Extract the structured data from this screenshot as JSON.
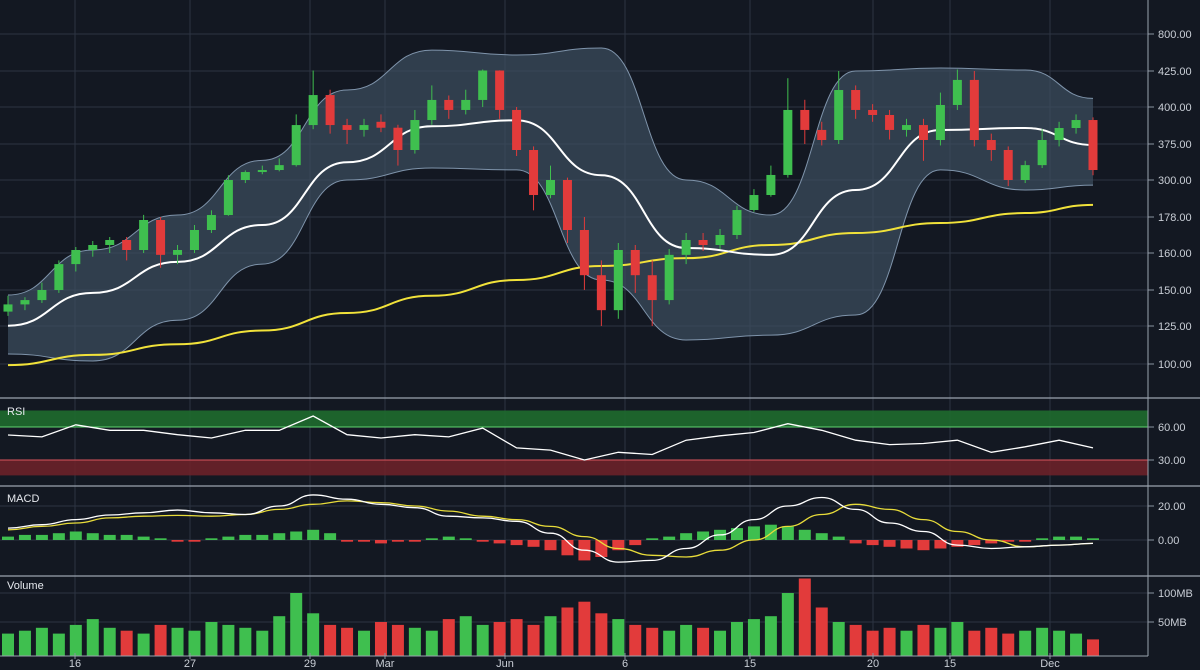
{
  "chart_data": [
    {
      "type": "candlestick",
      "pane": "price",
      "y_ticks": [
        800,
        425,
        400,
        375,
        300,
        178,
        160,
        150,
        125,
        100
      ],
      "y_tick_labels": [
        "800.00",
        "425.00",
        "400.00",
        "375.00",
        "300.00",
        "178.00",
        "160.00",
        "150.00",
        "125.00",
        "100.00"
      ],
      "x_tick_labels": [
        "16",
        "27",
        "29",
        "Mar",
        "Jun",
        "6",
        "15",
        "20",
        "15",
        "Dec"
      ],
      "grid": true,
      "colors": {
        "up": "#3fbf4f",
        "down": "#e23b3b",
        "band_fill": "#3d4e60",
        "band_edge": "#7f94ab",
        "sma": "#ffffff",
        "long_ma": "#f1e23a"
      },
      "ohlc": [
        [
          135,
          146,
          132,
          140
        ],
        [
          140,
          145,
          136,
          143
        ],
        [
          143,
          152,
          141,
          150
        ],
        [
          150,
          158,
          148,
          157
        ],
        [
          157,
          163,
          155,
          161.5
        ],
        [
          161.5,
          166,
          159,
          164
        ],
        [
          164,
          168,
          160,
          166.5
        ],
        [
          166.5,
          168,
          158,
          161.5
        ],
        [
          161.5,
          185,
          160,
          176.5
        ],
        [
          176.5,
          178,
          156,
          159.5
        ],
        [
          159.5,
          164,
          157,
          161.5
        ],
        [
          161.5,
          174,
          160,
          171.5
        ],
        [
          171.5,
          200,
          170,
          184.5
        ],
        [
          184.5,
          310,
          182,
          300
        ],
        [
          300,
          320,
          290,
          316.6
        ],
        [
          316.6,
          330,
          312,
          320.8
        ],
        [
          320.8,
          345,
          318,
          331
        ],
        [
          331,
          395,
          328,
          387.8
        ],
        [
          387.8,
          430,
          385,
          408.3
        ],
        [
          408.3,
          412,
          382,
          387.8
        ],
        [
          387.8,
          392,
          375,
          384.5
        ],
        [
          384.5,
          392,
          380,
          387.8
        ],
        [
          390,
          395,
          383,
          386
        ],
        [
          386,
          388,
          330,
          362.5
        ],
        [
          362.5,
          398,
          355,
          391.2
        ],
        [
          391.2,
          415,
          388,
          404.9
        ],
        [
          404.9,
          408,
          392,
          398
        ],
        [
          398,
          412,
          395,
          404.9
        ],
        [
          404.9,
          440,
          400,
          430
        ],
        [
          430,
          432,
          392,
          398
        ],
        [
          398,
          400,
          350,
          362.5
        ],
        [
          362.5,
          370,
          200,
          250.5
        ],
        [
          250.5,
          330,
          240,
          300
        ],
        [
          300,
          305,
          165,
          171.5
        ],
        [
          171.5,
          178,
          150,
          154
        ],
        [
          154,
          158,
          125,
          136
        ],
        [
          136,
          165,
          130,
          161.5
        ],
        [
          161.5,
          164,
          148,
          154
        ],
        [
          154,
          158,
          125,
          143
        ],
        [
          143,
          162,
          140,
          159.5
        ],
        [
          159.5,
          170,
          157,
          166.5
        ],
        [
          166.5,
          170,
          161,
          164
        ],
        [
          164,
          172,
          162,
          169
        ],
        [
          169,
          215,
          167,
          201
        ],
        [
          201,
          270,
          195,
          250.5
        ],
        [
          250.5,
          330,
          245,
          310.5
        ],
        [
          310.5,
          420,
          305,
          398
        ],
        [
          398,
          405,
          375,
          384.5
        ],
        [
          384.5,
          390,
          372,
          377.7
        ],
        [
          377.7,
          425,
          375,
          411.8
        ],
        [
          411.8,
          415,
          392,
          398
        ],
        [
          398,
          402,
          390,
          394.6
        ],
        [
          394.6,
          398,
          378,
          384.5
        ],
        [
          384.5,
          392,
          380,
          387.8
        ],
        [
          387.8,
          392,
          340,
          377.7
        ],
        [
          377.7,
          410,
          372,
          401.4
        ],
        [
          401.4,
          440,
          398,
          418.8
        ],
        [
          418.8,
          425,
          370,
          377.7
        ],
        [
          377.7,
          382,
          340,
          362.5
        ],
        [
          362.5,
          370,
          280,
          300
        ],
        [
          300,
          340,
          290,
          331
        ],
        [
          331,
          385,
          325,
          377.7
        ],
        [
          377.7,
          390,
          370,
          385.8
        ],
        [
          385.8,
          395,
          382,
          391.2
        ],
        [
          391.2,
          393,
          310,
          320.8
        ]
      ],
      "overlay_index": [
        0,
        5,
        10,
        15,
        20,
        25,
        30,
        35,
        40,
        45,
        50,
        55,
        60,
        64
      ],
      "sma": [
        125.2,
        148,
        157.6,
        174,
        337,
        387,
        391,
        310,
        162.5,
        159.5,
        267,
        384.5,
        385.8,
        373
      ],
      "upper_band": [
        146.5,
        161.5,
        184.5,
        341,
        411.8,
        637,
        587,
        658,
        300,
        184.5,
        425,
        455,
        435,
        406
      ],
      "lower_band": [
        106.6,
        102,
        129,
        157,
        300,
        325,
        321,
        152.7,
        115.8,
        119,
        132.6,
        321,
        267,
        283
      ],
      "long_ma": [
        99.3,
        106,
        113,
        122,
        134,
        146,
        152.7,
        156.5,
        158.6,
        164,
        170,
        175,
        191,
        218
      ]
    },
    {
      "type": "line",
      "pane": "rsi",
      "label": "RSI",
      "y_ticks": [
        60,
        30
      ],
      "y_tick_labels": [
        "60.00",
        "30.00"
      ],
      "overbought_zone": [
        60,
        75
      ],
      "oversold_zone": [
        16,
        30
      ],
      "colors": {
        "line": "#ffffff",
        "overbought": "#1f6b2e",
        "oversold": "#6b2129"
      },
      "values": [
        52.7,
        51,
        62,
        57,
        57,
        53,
        50,
        57,
        57,
        70,
        53,
        50,
        53,
        51,
        59,
        41,
        39,
        30,
        37,
        35,
        48,
        52,
        55,
        63,
        57,
        48,
        44,
        45,
        48,
        37,
        42,
        48,
        41
      ]
    },
    {
      "type": "macd",
      "pane": "macd",
      "label": "MACD",
      "y_ticks": [
        20,
        0
      ],
      "y_tick_labels": [
        "20.00",
        "0.00"
      ],
      "colors": {
        "macd": "#ffffff",
        "signal": "#e8dc3a",
        "up": "#3fbf4f",
        "down": "#e23b3b"
      },
      "macd": [
        7,
        9,
        12,
        14.7,
        16,
        17.6,
        16,
        15,
        20,
        26.5,
        24,
        21,
        19,
        14,
        13,
        11,
        4,
        -6,
        -13,
        -12,
        -5,
        3,
        12,
        20,
        25,
        18,
        10,
        5,
        -3,
        -5,
        -4,
        -3,
        -2
      ],
      "signal": [
        6,
        8,
        10,
        13,
        14,
        14.5,
        14,
        15,
        18,
        21,
        23,
        22,
        20,
        17,
        14,
        12,
        8,
        2,
        -5,
        -9,
        -10,
        -6,
        0,
        8,
        15,
        21,
        18,
        12,
        5,
        0,
        -4,
        -3,
        -2
      ],
      "histogram": [
        2,
        3,
        3,
        4,
        5,
        4,
        3,
        3,
        2,
        1,
        -1,
        -1,
        1,
        2,
        3,
        3,
        4,
        5,
        6,
        4,
        -1,
        -1,
        -2,
        -1,
        -1,
        1,
        2,
        1,
        -1,
        -2,
        -3,
        -4,
        -6,
        -9,
        -12,
        -10,
        -6,
        -3,
        1,
        2,
        4,
        5,
        6,
        7,
        8,
        9,
        8,
        6,
        4,
        2,
        -2,
        -3,
        -4,
        -5,
        -6,
        -5,
        -4,
        -3,
        -2,
        -1,
        -1,
        1,
        2,
        2,
        1
      ]
    },
    {
      "type": "bar",
      "pane": "volume",
      "label": "Volume",
      "y_ticks": [
        100,
        50
      ],
      "y_tick_labels": [
        "100MB",
        "50MB"
      ],
      "unit": "MB",
      "values": [
        30,
        35,
        40,
        30,
        45,
        55,
        40,
        35,
        30,
        45,
        40,
        35,
        50,
        45,
        40,
        35,
        60,
        100,
        65,
        45,
        40,
        35,
        50,
        45,
        40,
        35,
        55,
        60,
        45,
        50,
        55,
        45,
        60,
        75,
        85,
        65,
        55,
        45,
        40,
        35,
        45,
        40,
        35,
        50,
        55,
        60,
        100,
        125,
        75,
        50,
        45,
        35,
        40,
        35,
        45,
        40,
        50,
        35,
        40,
        30,
        35,
        40,
        35,
        30,
        20
      ]
    }
  ]
}
